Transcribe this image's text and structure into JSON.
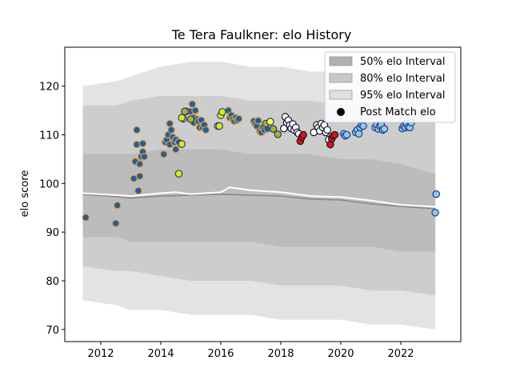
{
  "chart_data": {
    "type": "scatter",
    "title": "Te Tera Faulkner: elo History",
    "xlabel": "",
    "ylabel": "elo score",
    "xlim": [
      2010.8,
      2024.0
    ],
    "ylim": [
      67.5,
      128.0
    ],
    "xticks": [
      2012,
      2014,
      2016,
      2018,
      2020,
      2022
    ],
    "yticks": [
      70,
      80,
      90,
      100,
      110,
      120
    ],
    "grid": false,
    "legend_position": "top-right",
    "legend": [
      {
        "label": "50% elo Interval",
        "color": "#b0b0b0"
      },
      {
        "label": "80% elo Interval",
        "color": "#c8c8c8"
      },
      {
        "label": "95% elo Interval",
        "color": "#e0e0e0"
      },
      {
        "label": "Post Match elo",
        "color": "#000000"
      }
    ],
    "bands": {
      "x": [
        2011.4,
        2012.5,
        2013.0,
        2014.0,
        2015.0,
        2016.0,
        2017.0,
        2018.0,
        2019.0,
        2020.0,
        2021.0,
        2022.0,
        2023.15
      ],
      "b95": {
        "upper": [
          120,
          121,
          122,
          124,
          125,
          125,
          124,
          124,
          123,
          123,
          122,
          121,
          121
        ],
        "lower": [
          76,
          75,
          74,
          74,
          73,
          73,
          73,
          72,
          72,
          72,
          71,
          71,
          70
        ]
      },
      "b80": {
        "upper": [
          116,
          116,
          117,
          118,
          118,
          118,
          117,
          117,
          117,
          116,
          116,
          115,
          115
        ],
        "lower": [
          83,
          82,
          82,
          81,
          80,
          80,
          80,
          79,
          79,
          79,
          78,
          78,
          77
        ]
      },
      "b50": {
        "upper": [
          106,
          106,
          106,
          107,
          107,
          107,
          106,
          106,
          106,
          105,
          105,
          104,
          102
        ],
        "lower": [
          89,
          89,
          88,
          88,
          88,
          88,
          88,
          87,
          87,
          87,
          87,
          86,
          86
        ]
      }
    },
    "median_line": {
      "x": [
        2011.4,
        2012.5,
        2013.0,
        2014.0,
        2014.5,
        2015.0,
        2016.0,
        2016.3,
        2017.0,
        2018.0,
        2019.0,
        2020.0,
        2021.0,
        2022.0,
        2023.15
      ],
      "y": [
        98,
        97.6,
        97.4,
        98,
        98.2,
        97.8,
        98.2,
        99.2,
        98.6,
        98.2,
        97.4,
        97.2,
        96.5,
        95.6,
        95.2
      ],
      "color": "#ffffff"
    },
    "mean_line": {
      "x": [
        2011.4,
        2012.5,
        2013.0,
        2014.0,
        2015.0,
        2016.0,
        2017.0,
        2018.0,
        2019.0,
        2020.0,
        2021.0,
        2022.0,
        2023.15
      ],
      "y": [
        97.8,
        97.3,
        97.0,
        97.4,
        97.6,
        97.8,
        97.6,
        97.4,
        96.8,
        96.6,
        95.8,
        95.3,
        94.8
      ],
      "color": "#888888"
    },
    "series": [
      {
        "fill": "#1f5fa0",
        "edge": "#e0a040",
        "x": [
          2011.5,
          2012.5,
          2012.55,
          2013.1,
          2013.15,
          2013.2,
          2013.2,
          2013.25,
          2013.3,
          2013.3,
          2013.35,
          2013.4,
          2013.4,
          2013.45
        ],
        "y": [
          93,
          91.8,
          95.5,
          101,
          104.5,
          108,
          111,
          98.5,
          101.5,
          104,
          105.5,
          108.2,
          106.5,
          105.5
        ]
      },
      {
        "fill": "#1f5fa0",
        "edge": "#e0a040",
        "x": [
          2014.1,
          2014.15,
          2014.2,
          2014.25,
          2014.3,
          2014.3,
          2014.35,
          2014.4,
          2014.45,
          2014.5,
          2014.5,
          2014.6
        ],
        "y": [
          106,
          108.5,
          109,
          110,
          112.3,
          108,
          111,
          109.5,
          108.5,
          107,
          109,
          108.5
        ]
      },
      {
        "fill": "#1f5fa0",
        "edge": "#e0a040",
        "x": [
          2015.0,
          2015.05,
          2015.1,
          2015.1,
          2015.15,
          2015.2,
          2015.25,
          2015.3,
          2015.35,
          2015.4,
          2015.45,
          2015.5
        ],
        "y": [
          114.8,
          116.3,
          113.5,
          112.5,
          115,
          113.2,
          112.8,
          111.5,
          113,
          111.5,
          112,
          111
        ]
      },
      {
        "fill": "#1f5fa0",
        "edge": "#e0a040",
        "x": [
          2016.25,
          2016.3,
          2016.35,
          2016.4,
          2016.45,
          2016.5,
          2016.55,
          2016.6
        ],
        "y": [
          115,
          113.5,
          114,
          113.2,
          112.8,
          113.5,
          113,
          113.3
        ]
      },
      {
        "fill": "#1f5fa0",
        "edge": "#e0a040",
        "x": [
          2017.1,
          2017.15,
          2017.2,
          2017.25,
          2017.3,
          2017.35,
          2017.4,
          2017.45,
          2017.5,
          2017.55
        ],
        "y": [
          112.8,
          112.2,
          111.8,
          112.9,
          110.8,
          110.5,
          111.5,
          111,
          112.2,
          111.2
        ]
      },
      {
        "fill": "#e8e810",
        "edge": "#1f3f7f",
        "x": [
          2014.6,
          2014.7,
          2014.75,
          2014.7,
          2014.85,
          2015.9,
          2016.0,
          2016.05,
          2015.95
        ],
        "y": [
          102,
          108.1,
          113.3,
          113.5,
          114.8,
          111.8,
          114,
          114.7,
          111.8
        ]
      },
      {
        "fill": "#b0b020",
        "edge": "#1f3f7f",
        "x": [
          2014.8,
          2015.0,
          2017.75,
          2017.9,
          2017.5
        ],
        "y": [
          114.8,
          113.2,
          111.2,
          110.1,
          112.3
        ]
      },
      {
        "fill": "#ffff40",
        "edge": "#1f3f7f",
        "x": [
          2017.65
        ],
        "y": [
          112.7
        ]
      },
      {
        "fill": "#ffffff",
        "edge": "#141432",
        "x": [
          2018.1,
          2018.15,
          2018.2,
          2018.25,
          2018.3,
          2018.35,
          2018.4,
          2018.45,
          2018.5,
          2018.55,
          2018.6,
          2019.1,
          2019.2,
          2019.25,
          2019.3,
          2019.35,
          2019.4,
          2019.45,
          2019.5,
          2019.55,
          2019.6
        ],
        "y": [
          111.3,
          113.7,
          112.5,
          113,
          112,
          111.3,
          112.2,
          111,
          111.5,
          110.5,
          110.2,
          110.5,
          112,
          111.5,
          110.8,
          112.3,
          111.5,
          112,
          110.5,
          111,
          109
        ]
      },
      {
        "fill": "#e01010",
        "edge": "#141432",
        "x": [
          2018.65,
          2018.7,
          2018.75,
          2019.65,
          2019.7,
          2019.75,
          2019.8
        ],
        "y": [
          108.7,
          109.5,
          110,
          108,
          109.2,
          109.8,
          110
        ]
      },
      {
        "fill": "#90c8f0",
        "edge": "#1f3f7f",
        "x": [
          2020.1,
          2020.15,
          2020.2,
          2020.5,
          2020.55,
          2020.6,
          2020.65,
          2020.7,
          2020.75,
          2021.15,
          2021.2,
          2021.25,
          2021.3,
          2021.35,
          2021.4,
          2021.45,
          2022.05,
          2022.1,
          2022.15,
          2022.2,
          2022.25,
          2022.3,
          2022.35,
          2023.15,
          2023.18
        ],
        "y": [
          110.2,
          109.8,
          110,
          110.5,
          111,
          110.2,
          111.5,
          112,
          111.8,
          111.5,
          112,
          111.2,
          111.8,
          112,
          111,
          111.2,
          111.3,
          111.8,
          111.5,
          112.2,
          111.6,
          111.5,
          112.5,
          94,
          97.8
        ]
      }
    ]
  }
}
